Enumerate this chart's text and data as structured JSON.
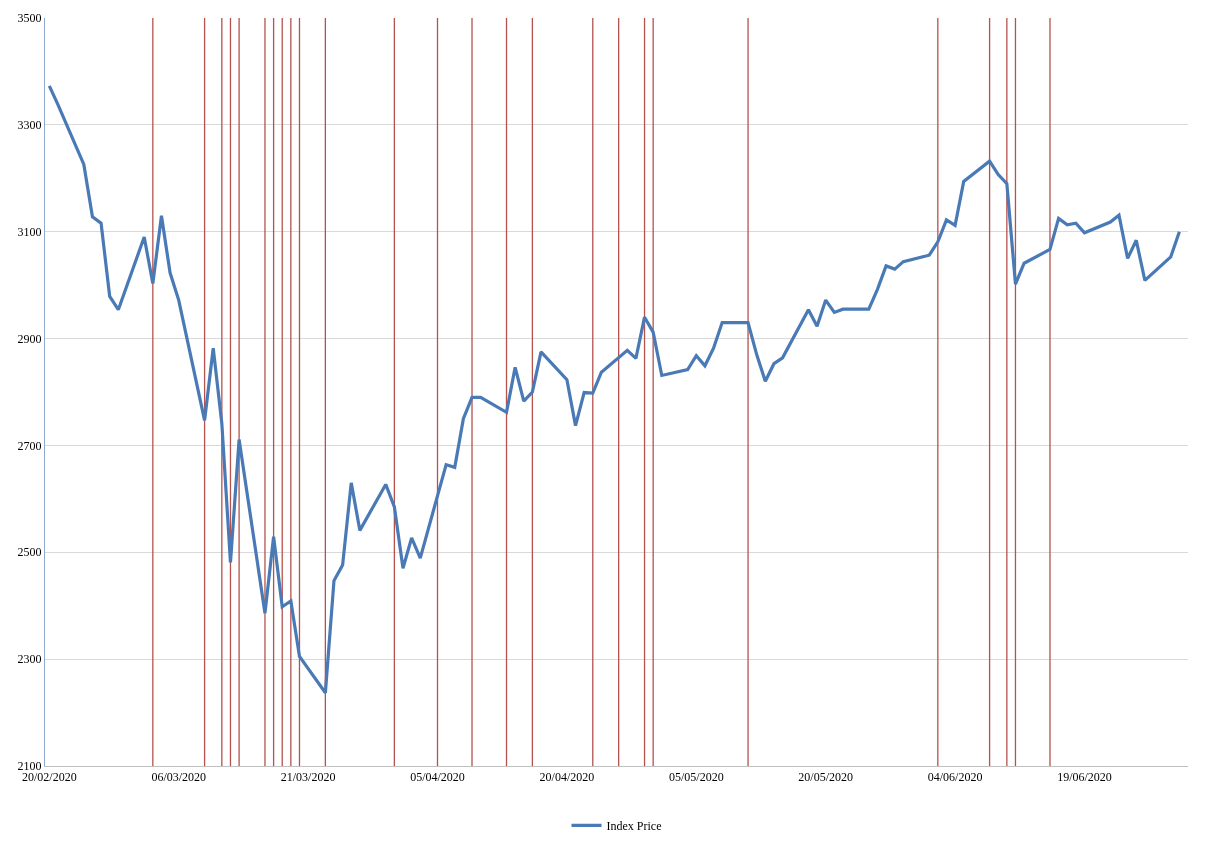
{
  "chart_data": {
    "type": "line",
    "series": [
      {
        "name": "Index Price",
        "color": "#4a7ab5",
        "x": [
          "2020-02-20",
          "2020-02-21",
          "2020-02-24",
          "2020-02-25",
          "2020-02-26",
          "2020-02-27",
          "2020-02-28",
          "2020-03-02",
          "2020-03-03",
          "2020-03-04",
          "2020-03-05",
          "2020-03-06",
          "2020-03-09",
          "2020-03-10",
          "2020-03-11",
          "2020-03-12",
          "2020-03-13",
          "2020-03-16",
          "2020-03-17",
          "2020-03-18",
          "2020-03-19",
          "2020-03-20",
          "2020-03-23",
          "2020-03-24",
          "2020-03-25",
          "2020-03-26",
          "2020-03-27",
          "2020-03-30",
          "2020-03-31",
          "2020-04-01",
          "2020-04-02",
          "2020-04-03",
          "2020-04-06",
          "2020-04-07",
          "2020-04-08",
          "2020-04-09",
          "2020-04-10",
          "2020-04-13",
          "2020-04-14",
          "2020-04-15",
          "2020-04-16",
          "2020-04-17",
          "2020-04-20",
          "2020-04-21",
          "2020-04-22",
          "2020-04-23",
          "2020-04-24",
          "2020-04-27",
          "2020-04-28",
          "2020-04-29",
          "2020-04-30",
          "2020-05-01",
          "2020-05-04",
          "2020-05-05",
          "2020-05-06",
          "2020-05-07",
          "2020-05-08",
          "2020-05-11",
          "2020-05-12",
          "2020-05-13",
          "2020-05-14",
          "2020-05-15",
          "2020-05-18",
          "2020-05-19",
          "2020-05-20",
          "2020-05-21",
          "2020-05-22",
          "2020-05-25",
          "2020-05-26",
          "2020-05-27",
          "2020-05-28",
          "2020-05-29",
          "2020-06-01",
          "2020-06-02",
          "2020-06-03",
          "2020-06-04",
          "2020-06-05",
          "2020-06-08",
          "2020-06-09",
          "2020-06-10",
          "2020-06-11",
          "2020-06-12",
          "2020-06-15",
          "2020-06-16",
          "2020-06-17",
          "2020-06-18",
          "2020-06-19",
          "2020-06-22",
          "2020-06-23",
          "2020-06-24",
          "2020-06-25",
          "2020-06-26",
          "2020-06-29",
          "2020-06-30"
        ],
        "values": [
          3373,
          3338,
          3226,
          3128,
          3116,
          2979,
          2954,
          3090,
          3003,
          3130,
          3023,
          2972,
          2747,
          2882,
          2741,
          2481,
          2711,
          2386,
          2529,
          2398,
          2409,
          2305,
          2237,
          2447,
          2476,
          2630,
          2541,
          2627,
          2585,
          2470,
          2527,
          2489,
          2664,
          2659,
          2750,
          2790,
          2790,
          2762,
          2846,
          2783,
          2800,
          2875,
          2823,
          2737,
          2799,
          2798,
          2837,
          2878,
          2863,
          2940,
          2912,
          2831,
          2842,
          2868,
          2849,
          2882,
          2930,
          2930,
          2870,
          2820,
          2853,
          2864,
          2954,
          2923,
          2972,
          2949,
          2955,
          2955,
          2992,
          3036,
          3030,
          3044,
          3056,
          3081,
          3122,
          3112,
          3194,
          3232,
          3207,
          3190,
          3002,
          3041,
          3067,
          3125,
          3113,
          3116,
          3098,
          3118,
          3131,
          3050,
          3084,
          3009,
          3053,
          3100
        ]
      }
    ],
    "ref_lines": [
      {
        "axis": "x",
        "value": "2020-03-03",
        "color": "#b5524e"
      },
      {
        "axis": "x",
        "value": "2020-03-09",
        "color": "#b5524e"
      },
      {
        "axis": "x",
        "value": "2020-03-11",
        "color": "#b5524e"
      },
      {
        "axis": "x",
        "value": "2020-03-12",
        "color": "#b5524e"
      },
      {
        "axis": "x",
        "value": "2020-03-13",
        "color": "#b5524e"
      },
      {
        "axis": "x",
        "value": "2020-03-16",
        "color": "#b5524e"
      },
      {
        "axis": "x",
        "value": "2020-03-17",
        "color": "#b5524e"
      },
      {
        "axis": "x",
        "value": "2020-03-18",
        "color": "#b5524e"
      },
      {
        "axis": "x",
        "value": "2020-03-19",
        "color": "#b5524e"
      },
      {
        "axis": "x",
        "value": "2020-03-20",
        "color": "#b5524e"
      },
      {
        "axis": "x",
        "value": "2020-03-23",
        "color": "#b5524e"
      },
      {
        "axis": "x",
        "value": "2020-03-31",
        "color": "#b5524e"
      },
      {
        "axis": "x",
        "value": "2020-04-05",
        "color": "#b5524e"
      },
      {
        "axis": "x",
        "value": "2020-04-09",
        "color": "#b5524e"
      },
      {
        "axis": "x",
        "value": "2020-04-13",
        "color": "#b5524e"
      },
      {
        "axis": "x",
        "value": "2020-04-16",
        "color": "#b5524e"
      },
      {
        "axis": "x",
        "value": "2020-04-23",
        "color": "#b5524e"
      },
      {
        "axis": "x",
        "value": "2020-04-26",
        "color": "#b5524e"
      },
      {
        "axis": "x",
        "value": "2020-04-29",
        "color": "#b5524e"
      },
      {
        "axis": "x",
        "value": "2020-04-30",
        "color": "#b5524e"
      },
      {
        "axis": "x",
        "value": "2020-05-11",
        "color": "#b5524e"
      },
      {
        "axis": "x",
        "value": "2020-06-02",
        "color": "#b5524e"
      },
      {
        "axis": "x",
        "value": "2020-06-08",
        "color": "#b5524e"
      },
      {
        "axis": "x",
        "value": "2020-06-10",
        "color": "#b5524e"
      },
      {
        "axis": "x",
        "value": "2020-06-11",
        "color": "#b5524e"
      },
      {
        "axis": "x",
        "value": "2020-06-15",
        "color": "#b5524e"
      }
    ],
    "xlim": [
      "2020-02-19T12:00",
      "2020-07-01"
    ],
    "xticks": [
      {
        "value": "2020-02-20",
        "label": "20/02/2020"
      },
      {
        "value": "2020-03-06",
        "label": "06/03/2020"
      },
      {
        "value": "2020-03-21",
        "label": "21/03/2020"
      },
      {
        "value": "2020-04-05",
        "label": "05/04/2020"
      },
      {
        "value": "2020-04-20",
        "label": "20/04/2020"
      },
      {
        "value": "2020-05-05",
        "label": "05/05/2020"
      },
      {
        "value": "2020-05-20",
        "label": "20/05/2020"
      },
      {
        "value": "2020-06-04",
        "label": "04/06/2020"
      },
      {
        "value": "2020-06-19",
        "label": "19/06/2020"
      }
    ],
    "ylim": [
      2100,
      3500
    ],
    "yticks": [
      2100,
      2300,
      2500,
      2700,
      2900,
      3100,
      3300,
      3500
    ],
    "grid": "y",
    "legend": "bottom",
    "line_style": "solid",
    "marker": "none"
  }
}
